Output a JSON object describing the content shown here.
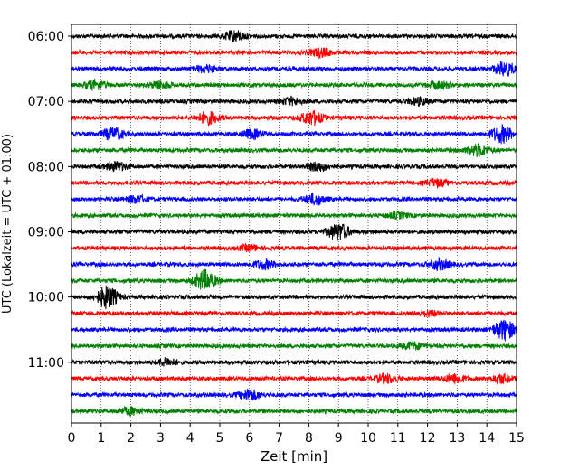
{
  "chart_data": {
    "type": "line",
    "xlabel": "Zeit  [min]",
    "ylabel": "UTC (Lokalzeit = UTC + 01:00)",
    "xlim": [
      0,
      15
    ],
    "x_ticks": [
      0,
      1,
      2,
      3,
      4,
      5,
      6,
      7,
      8,
      9,
      10,
      11,
      12,
      13,
      14,
      15
    ],
    "x_grid": "dotted",
    "y_tick_labels": [
      "06:00",
      "07:00",
      "08:00",
      "09:00",
      "10:00",
      "11:00"
    ],
    "minutes_per_trace": 15,
    "start_time": "06:00",
    "trace_colors": [
      "#000000",
      "#ff0000",
      "#0000ff",
      "#008000"
    ],
    "traces": [
      {
        "label": "06:00",
        "color": "#000000",
        "events": [
          {
            "t": 5.5,
            "amp": 0.6
          }
        ]
      },
      {
        "label": "06:15",
        "color": "#ff0000",
        "events": [
          {
            "t": 8.4,
            "amp": 0.5
          }
        ]
      },
      {
        "label": "06:30",
        "color": "#0000ff",
        "events": [
          {
            "t": 4.5,
            "amp": 0.4
          },
          {
            "t": 14.6,
            "amp": 0.8
          }
        ]
      },
      {
        "label": "06:45",
        "color": "#008000",
        "events": [
          {
            "t": 0.8,
            "amp": 0.5
          },
          {
            "t": 3.0,
            "amp": 0.4
          },
          {
            "t": 12.4,
            "amp": 0.4
          }
        ]
      },
      {
        "label": "07:00",
        "color": "#000000",
        "events": [
          {
            "t": 7.4,
            "amp": 0.4
          },
          {
            "t": 11.7,
            "amp": 0.4
          }
        ]
      },
      {
        "label": "07:15",
        "color": "#ff0000",
        "events": [
          {
            "t": 4.6,
            "amp": 0.7
          },
          {
            "t": 8.1,
            "amp": 0.8
          }
        ]
      },
      {
        "label": "07:30",
        "color": "#0000ff",
        "events": [
          {
            "t": 1.4,
            "amp": 0.7
          },
          {
            "t": 6.1,
            "amp": 0.5
          },
          {
            "t": 14.5,
            "amp": 1.0
          }
        ]
      },
      {
        "label": "07:45",
        "color": "#008000",
        "events": [
          {
            "t": 13.7,
            "amp": 0.7
          }
        ]
      },
      {
        "label": "08:00",
        "color": "#000000",
        "events": [
          {
            "t": 1.5,
            "amp": 0.5
          },
          {
            "t": 8.3,
            "amp": 0.5
          }
        ]
      },
      {
        "label": "08:15",
        "color": "#ff0000",
        "events": [
          {
            "t": 12.3,
            "amp": 0.4
          }
        ]
      },
      {
        "label": "08:30",
        "color": "#0000ff",
        "events": [
          {
            "t": 2.2,
            "amp": 0.4
          },
          {
            "t": 8.2,
            "amp": 0.6
          }
        ]
      },
      {
        "label": "08:45",
        "color": "#008000",
        "events": [
          {
            "t": 11.0,
            "amp": 0.3
          }
        ]
      },
      {
        "label": "09:00",
        "color": "#000000",
        "events": [
          {
            "t": 9.0,
            "amp": 1.0
          }
        ]
      },
      {
        "label": "09:15",
        "color": "#ff0000",
        "events": [
          {
            "t": 6.0,
            "amp": 0.3
          }
        ]
      },
      {
        "label": "09:30",
        "color": "#0000ff",
        "events": [
          {
            "t": 6.5,
            "amp": 0.5
          },
          {
            "t": 12.4,
            "amp": 0.6
          }
        ]
      },
      {
        "label": "09:45",
        "color": "#008000",
        "events": [
          {
            "t": 4.5,
            "amp": 1.2
          }
        ]
      },
      {
        "label": "10:00",
        "color": "#000000",
        "events": [
          {
            "t": 1.2,
            "amp": 1.3
          }
        ]
      },
      {
        "label": "10:15",
        "color": "#ff0000",
        "events": [
          {
            "t": 12.0,
            "amp": 0.3
          }
        ]
      },
      {
        "label": "10:30",
        "color": "#0000ff",
        "events": [
          {
            "t": 14.6,
            "amp": 1.2
          }
        ]
      },
      {
        "label": "10:45",
        "color": "#008000",
        "events": [
          {
            "t": 11.5,
            "amp": 0.4
          }
        ]
      },
      {
        "label": "11:00",
        "color": "#000000",
        "events": [
          {
            "t": 3.2,
            "amp": 0.4
          }
        ]
      },
      {
        "label": "11:15",
        "color": "#ff0000",
        "events": [
          {
            "t": 10.6,
            "amp": 0.5
          },
          {
            "t": 12.9,
            "amp": 0.5
          },
          {
            "t": 14.5,
            "amp": 0.5
          }
        ]
      },
      {
        "label": "11:30",
        "color": "#0000ff",
        "events": [
          {
            "t": 6.0,
            "amp": 0.6
          }
        ]
      },
      {
        "label": "11:45",
        "color": "#008000",
        "events": [
          {
            "t": 2.0,
            "amp": 0.4
          }
        ]
      }
    ]
  }
}
